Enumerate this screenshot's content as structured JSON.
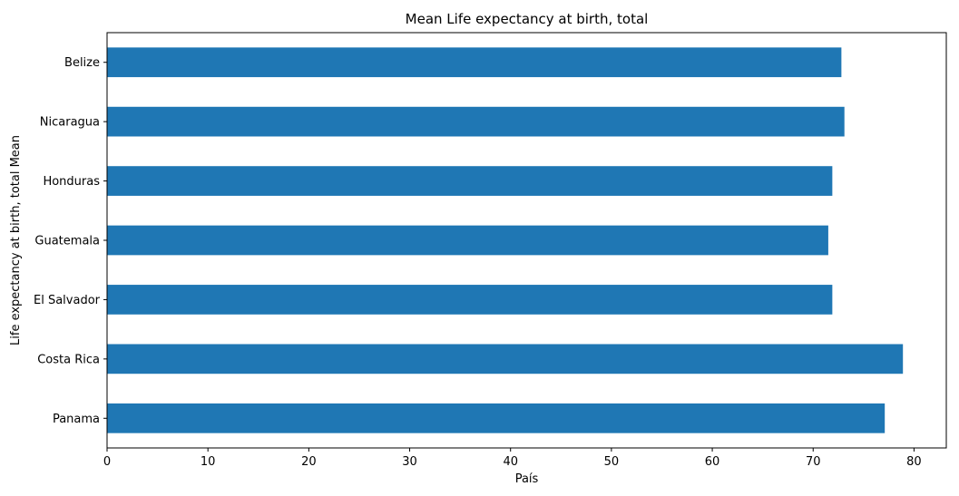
{
  "chart_data": {
    "type": "bar",
    "orientation": "horizontal",
    "title": "Mean Life expectancy at birth, total",
    "xlabel": "País",
    "ylabel": "Life expectancy at birth, total  Mean",
    "categories": [
      "Panama",
      "Costa Rica",
      "El Salvador",
      "Guatemala",
      "Honduras",
      "Nicaragua",
      "Belize"
    ],
    "values": [
      77.1,
      78.9,
      71.9,
      71.5,
      71.9,
      73.1,
      72.8
    ],
    "xlim": [
      0,
      83.2
    ],
    "xticks": [
      0,
      10,
      20,
      30,
      40,
      50,
      60,
      70,
      80
    ],
    "bar_color": "#1f77b4",
    "grid": false
  }
}
